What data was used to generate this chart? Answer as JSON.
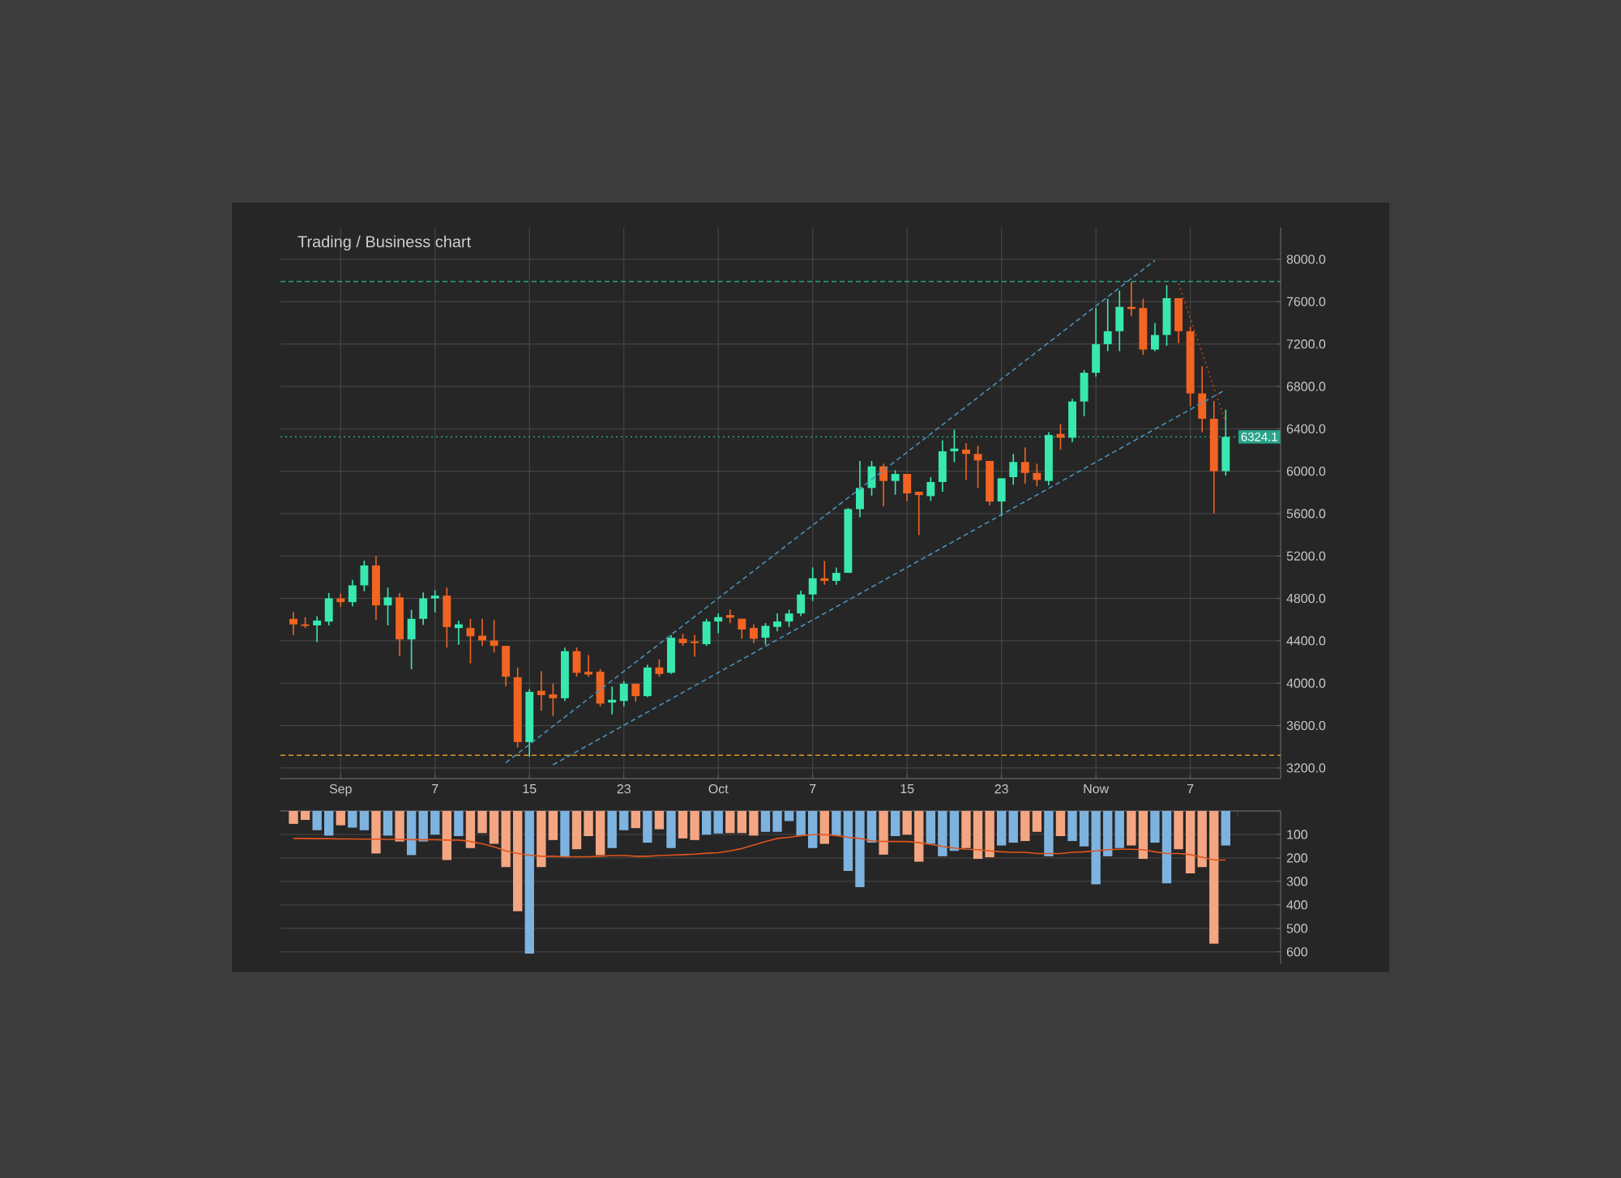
{
  "chart_data": [
    {
      "type": "candlestick",
      "title": "Trading / Business chart",
      "categories": [
        null,
        null,
        null,
        null,
        "Sep",
        null,
        null,
        null,
        null,
        null,
        null,
        null,
        "7",
        null,
        null,
        null,
        null,
        null,
        null,
        null,
        "15",
        null,
        null,
        null,
        null,
        null,
        null,
        null,
        "23",
        null,
        null,
        null,
        null,
        null,
        null,
        null,
        "Oct",
        null,
        null,
        null,
        null,
        null,
        null,
        null,
        "7",
        null,
        null,
        null,
        null,
        null,
        null,
        null,
        "15",
        null,
        null,
        null,
        null,
        null,
        null,
        null,
        "23",
        null,
        null,
        null,
        null,
        null,
        null,
        null,
        "Now",
        null,
        null,
        null,
        null,
        null,
        null,
        null,
        "7",
        null,
        null,
        null
      ],
      "ohlc": [
        [
          4607,
          4673,
          4453,
          4555
        ],
        [
          4555,
          4622,
          4520,
          4540
        ],
        [
          4545,
          4632,
          4387,
          4591
        ],
        [
          4581,
          4851,
          4545,
          4800
        ],
        [
          4800,
          4846,
          4719,
          4765
        ],
        [
          4765,
          4974,
          4724,
          4923
        ],
        [
          4923,
          5157,
          4867,
          5111
        ],
        [
          5111,
          5198,
          4596,
          4734
        ],
        [
          4734,
          4902,
          4545,
          4810
        ],
        [
          4810,
          4851,
          4255,
          4413
        ],
        [
          4413,
          4693,
          4132,
          4607
        ],
        [
          4607,
          4856,
          4550,
          4800
        ],
        [
          4800,
          4877,
          4668,
          4826
        ],
        [
          4826,
          4902,
          4336,
          4530
        ],
        [
          4520,
          4591,
          4362,
          4555
        ],
        [
          4520,
          4607,
          4188,
          4443
        ],
        [
          4448,
          4607,
          4352,
          4403
        ],
        [
          4403,
          4597,
          4290,
          4352
        ],
        [
          4352,
          4352,
          3969,
          4061
        ],
        [
          4056,
          4147,
          3393,
          3444
        ],
        [
          3444,
          3944,
          3306,
          3918
        ],
        [
          3928,
          4112,
          3740,
          3887
        ],
        [
          3894,
          3995,
          3690,
          3858
        ],
        [
          3858,
          4337,
          3832,
          4302
        ],
        [
          4302,
          4337,
          4062,
          4098
        ],
        [
          4108,
          4266,
          4062,
          4082
        ],
        [
          4108,
          4133,
          3781,
          3807
        ],
        [
          3817,
          3970,
          3705,
          3843
        ],
        [
          3832,
          4021,
          3781,
          3995
        ],
        [
          3995,
          3995,
          3827,
          3878
        ],
        [
          3878,
          4174,
          3868,
          4148
        ],
        [
          4148,
          4225,
          4062,
          4087
        ],
        [
          4098,
          4454,
          4087,
          4429
        ],
        [
          4419,
          4465,
          4352,
          4378
        ],
        [
          4393,
          4454,
          4250,
          4378
        ],
        [
          4368,
          4607,
          4352,
          4582
        ],
        [
          4582,
          4658,
          4470,
          4623
        ],
        [
          4643,
          4694,
          4567,
          4618
        ],
        [
          4608,
          4608,
          4419,
          4506
        ],
        [
          4521,
          4557,
          4378,
          4419
        ],
        [
          4429,
          4567,
          4363,
          4541
        ],
        [
          4531,
          4658,
          4490,
          4582
        ],
        [
          4582,
          4694,
          4531,
          4658
        ],
        [
          4658,
          4873,
          4633,
          4837
        ],
        [
          4837,
          5092,
          4776,
          4990
        ],
        [
          4990,
          5153,
          4929,
          4965
        ],
        [
          4965,
          5092,
          4929,
          5041
        ],
        [
          5041,
          5653,
          5041,
          5643
        ],
        [
          5642,
          6097,
          5566,
          5842
        ],
        [
          5842,
          6097,
          5770,
          6046
        ],
        [
          6046,
          6071,
          5668,
          5908
        ],
        [
          5908,
          6010,
          5780,
          5974
        ],
        [
          5974,
          5974,
          5719,
          5791
        ],
        [
          5806,
          5806,
          5398,
          5775
        ],
        [
          5765,
          5944,
          5719,
          5898
        ],
        [
          5898,
          6291,
          5806,
          6188
        ],
        [
          6188,
          6393,
          6086,
          6214
        ],
        [
          6204,
          6265,
          5918,
          6163
        ],
        [
          6163,
          6240,
          5842,
          6102
        ],
        [
          6097,
          6097,
          5678,
          5714
        ],
        [
          5714,
          5933,
          5576,
          5933
        ],
        [
          5944,
          6163,
          5872,
          6087
        ],
        [
          6087,
          6224,
          5882,
          5984
        ],
        [
          5984,
          6071,
          5857,
          5918
        ],
        [
          5908,
          6367,
          5867,
          6342
        ],
        [
          6352,
          6444,
          6204,
          6316
        ],
        [
          6316,
          6684,
          6275,
          6658
        ],
        [
          6658,
          6954,
          6520,
          6929
        ],
        [
          6929,
          7541,
          6893,
          7199
        ],
        [
          7199,
          7628,
          7133,
          7321
        ],
        [
          7321,
          7704,
          7133,
          7551
        ],
        [
          7551,
          7786,
          7464,
          7531
        ],
        [
          7541,
          7628,
          7097,
          7148
        ],
        [
          7148,
          7398,
          7133,
          7286
        ],
        [
          7286,
          7755,
          7184,
          7633
        ],
        [
          7633,
          7633,
          7209,
          7321
        ],
        [
          7321,
          7362,
          6612,
          6734
        ],
        [
          6734,
          6990,
          6367,
          6495
        ],
        [
          6495,
          6663,
          5602,
          6000
        ],
        [
          6000,
          6581,
          5959,
          6324.1
        ]
      ],
      "colors": [
        "#f26422",
        "#f26422",
        "#38e8b0",
        "#38e8b0",
        "#f26422",
        "#38e8b0",
        "#38e8b0",
        "#f26422",
        "#38e8b0",
        "#f26422",
        "#38e8b0",
        "#38e8b0",
        "#38e8b0",
        "#f26422",
        "#38e8b0",
        "#f26422",
        "#f26422",
        "#f26422",
        "#f26422",
        "#f26422",
        "#38e8b0",
        "#f26422",
        "#f26422",
        "#38e8b0",
        "#f26422",
        "#f26422",
        "#f26422",
        "#38e8b0",
        "#38e8b0",
        "#f26422",
        "#38e8b0",
        "#f26422",
        "#38e8b0",
        "#f26422",
        "#f26422",
        "#38e8b0",
        "#38e8b0",
        "#f26422",
        "#f26422",
        "#f26422",
        "#38e8b0",
        "#38e8b0",
        "#38e8b0",
        "#38e8b0",
        "#38e8b0",
        "#f26422",
        "#38e8b0",
        "#38e8b0",
        "#38e8b0",
        "#38e8b0",
        "#f26422",
        "#38e8b0",
        "#f26422",
        "#f26422",
        "#38e8b0",
        "#38e8b0",
        "#38e8b0",
        "#f26422",
        "#f26422",
        "#f26422",
        "#38e8b0",
        "#38e8b0",
        "#f26422",
        "#f26422",
        "#38e8b0",
        "#f26422",
        "#38e8b0",
        "#38e8b0",
        "#38e8b0",
        "#38e8b0",
        "#38e8b0",
        "#f26422",
        "#f26422",
        "#38e8b0",
        "#38e8b0",
        "#f26422",
        "#f26422",
        "#f26422",
        "#f26422",
        "#38e8b0"
      ],
      "series": [
        {
          "type": "line",
          "values": [
            null,
            null,
            null,
            null,
            null,
            null,
            null,
            null,
            null,
            null,
            null,
            null,
            null,
            null,
            null,
            null,
            null,
            null,
            3250,
            null,
            null,
            null,
            null,
            null,
            null,
            null,
            null,
            null,
            null,
            null,
            null,
            null,
            null,
            null,
            null,
            null,
            null,
            null,
            null,
            null,
            null,
            null,
            null,
            null,
            null,
            null,
            null,
            null,
            null,
            null,
            null,
            null,
            null,
            null,
            null,
            null,
            null,
            null,
            null,
            null,
            null,
            null,
            null,
            null,
            null,
            null,
            null,
            null,
            null,
            null,
            null,
            null,
            null,
            7990,
            null,
            null,
            null,
            null,
            null,
            null
          ],
          "color": "#4a90b8",
          "line_style": "dashed"
        },
        {
          "type": "line",
          "values": [
            null,
            null,
            null,
            null,
            null,
            null,
            null,
            null,
            null,
            null,
            null,
            null,
            null,
            null,
            null,
            null,
            null,
            null,
            null,
            null,
            null,
            null,
            3230,
            null,
            null,
            null,
            null,
            null,
            null,
            null,
            null,
            null,
            null,
            null,
            null,
            null,
            null,
            null,
            null,
            null,
            null,
            null,
            null,
            null,
            null,
            null,
            null,
            null,
            null,
            null,
            null,
            null,
            null,
            null,
            null,
            null,
            null,
            null,
            null,
            null,
            null,
            null,
            null,
            null,
            null,
            null,
            null,
            null,
            null,
            null,
            null,
            null,
            null,
            null,
            null,
            null,
            null,
            null,
            null,
            6770
          ],
          "color": "#4a90b8",
          "line_style": "dashed"
        },
        {
          "type": "line",
          "values": [
            null,
            null,
            null,
            null,
            null,
            null,
            null,
            null,
            null,
            null,
            null,
            null,
            null,
            null,
            null,
            null,
            null,
            null,
            null,
            null,
            null,
            null,
            null,
            null,
            null,
            null,
            null,
            null,
            null,
            null,
            null,
            null,
            null,
            null,
            null,
            null,
            null,
            null,
            null,
            null,
            null,
            null,
            null,
            null,
            null,
            null,
            null,
            null,
            null,
            null,
            null,
            null,
            null,
            null,
            null,
            null,
            null,
            null,
            null,
            null,
            null,
            null,
            null,
            null,
            null,
            null,
            null,
            null,
            null,
            null,
            null,
            null,
            null,
            null,
            null,
            7770,
            null,
            null,
            null,
            6460
          ],
          "color": "#c0451a",
          "line_style": "dotted"
        }
      ],
      "ylim": [
        3100,
        8300
      ],
      "yticks": [
        {
          "value": 3200,
          "label": "3200.0"
        },
        {
          "value": 3600,
          "label": "3600.0"
        },
        {
          "value": 4000,
          "label": "4000.0"
        },
        {
          "value": 4400,
          "label": "4400.0"
        },
        {
          "value": 4800,
          "label": "4800.0"
        },
        {
          "value": 5200,
          "label": "5200.0"
        },
        {
          "value": 5600,
          "label": "5600.0"
        },
        {
          "value": 6000,
          "label": "6000.0"
        },
        {
          "value": 6400,
          "label": "6400.0"
        },
        {
          "value": 6800,
          "label": "6800.0"
        },
        {
          "value": 7200,
          "label": "7200.0"
        },
        {
          "value": 7600,
          "label": "7600.0"
        },
        {
          "value": 8000,
          "label": "8000.0"
        }
      ],
      "grid": true,
      "ref_lines": [
        {
          "axis": "y",
          "value": 7790,
          "color": "#2aa38a",
          "line_style": "dashed"
        },
        {
          "axis": "y",
          "value": 6324.1,
          "label": "6324.1",
          "color": "#2aa38a",
          "line_style": "dotted"
        },
        {
          "axis": "y",
          "value": 3320,
          "color": "#d99a20",
          "line_style": "dashed"
        }
      ]
    },
    {
      "type": "bar",
      "categories": [
        null,
        null,
        null,
        null,
        null,
        null,
        null,
        null,
        null,
        null,
        null,
        null,
        null,
        null,
        null,
        null,
        null,
        null,
        null,
        null,
        null,
        null,
        null,
        null,
        null,
        null,
        null,
        null,
        null,
        null,
        null,
        null,
        null,
        null,
        null,
        null,
        null,
        null,
        null,
        null,
        null,
        null,
        null,
        null,
        null,
        null,
        null,
        null,
        null,
        null,
        null,
        null,
        null,
        null,
        null,
        null,
        null,
        null,
        null,
        null,
        null,
        null,
        null,
        null,
        null,
        null,
        null,
        null,
        null,
        null,
        null,
        null,
        null,
        null,
        null,
        null,
        null,
        null,
        null,
        null
      ],
      "series": [
        {
          "type": "bar",
          "values": [
            55,
            38,
            82,
            105,
            61,
            71,
            82,
            181,
            105,
            130,
            188,
            130,
            101,
            209,
            107,
            158,
            94,
            140,
            239,
            427,
            607,
            239,
            124,
            197,
            163,
            107,
            188,
            158,
            82,
            73,
            135,
            78,
            158,
            117,
            124,
            101,
            96,
            94,
            94,
            105,
            89,
            89,
            43,
            105,
            158,
            140,
            105,
            255,
            324,
            135,
            186,
            107,
            101,
            216,
            140,
            193,
            170,
            158,
            204,
            197,
            147,
            135,
            128,
            89,
            193,
            107,
            128,
            151,
            312,
            193,
            158,
            147,
            204,
            135,
            308,
            163,
            266,
            239,
            565,
            147
          ],
          "colors": [
            "#f4a582",
            "#f4a582",
            "#7eb3e0",
            "#7eb3e0",
            "#f4a582",
            "#7eb3e0",
            "#7eb3e0",
            "#f4a582",
            "#7eb3e0",
            "#f4a582",
            "#7eb3e0",
            "#7eb3e0",
            "#7eb3e0",
            "#f4a582",
            "#7eb3e0",
            "#f4a582",
            "#f4a582",
            "#f4a582",
            "#f4a582",
            "#f4a582",
            "#7eb3e0",
            "#f4a582",
            "#f4a582",
            "#7eb3e0",
            "#f4a582",
            "#f4a582",
            "#f4a582",
            "#7eb3e0",
            "#7eb3e0",
            "#f4a582",
            "#7eb3e0",
            "#f4a582",
            "#7eb3e0",
            "#f4a582",
            "#f4a582",
            "#7eb3e0",
            "#7eb3e0",
            "#f4a582",
            "#f4a582",
            "#f4a582",
            "#7eb3e0",
            "#7eb3e0",
            "#7eb3e0",
            "#7eb3e0",
            "#7eb3e0",
            "#f4a582",
            "#7eb3e0",
            "#7eb3e0",
            "#7eb3e0",
            "#7eb3e0",
            "#f4a582",
            "#7eb3e0",
            "#f4a582",
            "#f4a582",
            "#7eb3e0",
            "#7eb3e0",
            "#7eb3e0",
            "#f4a582",
            "#f4a582",
            "#f4a582",
            "#7eb3e0",
            "#7eb3e0",
            "#f4a582",
            "#f4a582",
            "#7eb3e0",
            "#f4a582",
            "#7eb3e0",
            "#7eb3e0",
            "#7eb3e0",
            "#7eb3e0",
            "#7eb3e0",
            "#f4a582",
            "#f4a582",
            "#7eb3e0",
            "#7eb3e0",
            "#f4a582",
            "#f4a582",
            "#f4a582",
            "#f4a582",
            "#7eb3e0"
          ]
        },
        {
          "type": "line",
          "color": "#e0541c",
          "values": [
            117,
            117,
            118,
            118,
            119,
            119,
            120,
            120,
            121,
            121,
            122,
            122,
            122,
            124,
            124,
            130,
            140,
            153,
            170,
            181,
            188,
            193,
            193,
            195,
            195,
            195,
            193,
            190,
            190,
            193,
            193,
            190,
            188,
            186,
            184,
            180,
            178,
            170,
            160,
            145,
            130,
            117,
            112,
            105,
            101,
            101,
            105,
            112,
            117,
            128,
            130,
            130,
            130,
            135,
            142,
            151,
            158,
            163,
            165,
            170,
            174,
            176,
            176,
            181,
            181,
            181,
            176,
            174,
            170,
            165,
            163,
            163,
            165,
            174,
            181,
            181,
            186,
            197,
            209,
            209
          ]
        }
      ],
      "ylim": [
        650,
        0
      ],
      "yticks": [
        100,
        200,
        300,
        400,
        500,
        600
      ],
      "grid": "y"
    }
  ]
}
